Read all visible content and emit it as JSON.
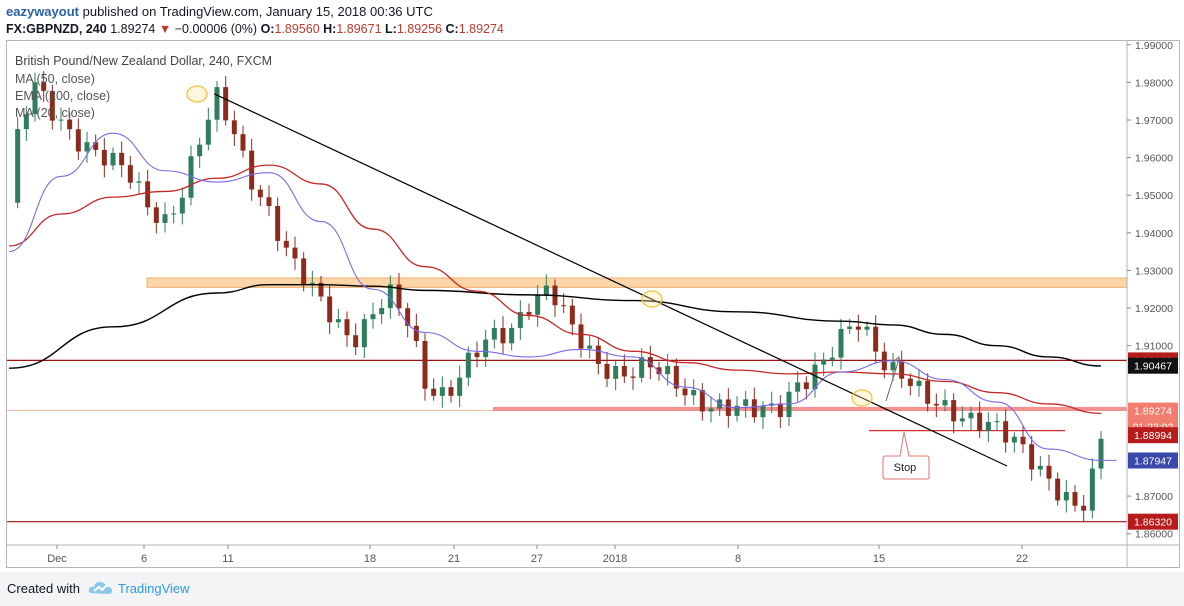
{
  "header": {
    "author": "eazywayout",
    "published_text": "published on TradingView.com, January 15, 2018 00:36 UTC",
    "symbol_line": "FX:GBPNZD, 240",
    "last_price": "1.89274",
    "change": "−0.00006 (0%)",
    "o_label": "O:",
    "o_value": "1.89560",
    "h_label": "H:",
    "h_value": "1.89671",
    "l_label": "L:",
    "l_value": "1.89256",
    "c_label": "C:",
    "c_value": "1.89274"
  },
  "legend": {
    "instrument": "British Pound/New Zealand Dollar, 240, FXCM",
    "ma50": "MA (50, close)",
    "ema200": "EMA (200, close)",
    "ma20": "MA (20, close)"
  },
  "annotations": {
    "stop_label": "Stop"
  },
  "footer": {
    "created_with": "Created with",
    "brand": "TradingView"
  },
  "colors": {
    "bull_candle": "#2e7d5b",
    "bear_candle": "#8b2b1e",
    "ema200": "#000000",
    "ma50": "#c62828",
    "ma20": "#7b68ee",
    "zone_fill": "#fcd5a8",
    "level_line": "#a01010",
    "pink_level": "#f08080",
    "highlight_circle": "#f5c242"
  },
  "chart_data": {
    "type": "candlestick",
    "symbol": "FX:GBPNZD",
    "timeframe": "240",
    "y_axis_ticks": [
      "1.99000",
      "1.98000",
      "1.97000",
      "1.96000",
      "1.95000",
      "1.94000",
      "1.93000",
      "1.92000",
      "1.91000",
      "1.87000",
      "1.86000"
    ],
    "ylim": [
      1.857,
      1.991
    ],
    "x_axis_ticks": [
      "Dec",
      "6",
      "11",
      "18",
      "21",
      "27",
      "2018",
      "8",
      "15",
      "22"
    ],
    "close_path": [
      {
        "x": 0.0,
        "y": 1.948
      },
      {
        "x": 0.2,
        "y": 1.968
      },
      {
        "x": 0.5,
        "y": 1.978
      },
      {
        "x": 0.9,
        "y": 1.971
      },
      {
        "x": 1.3,
        "y": 1.966
      },
      {
        "x": 1.8,
        "y": 1.96
      },
      {
        "x": 2.3,
        "y": 1.955
      },
      {
        "x": 2.7,
        "y": 1.947
      },
      {
        "x": 3.0,
        "y": 1.944
      },
      {
        "x": 3.3,
        "y": 1.95
      },
      {
        "x": 3.7,
        "y": 1.965
      },
      {
        "x": 4.0,
        "y": 1.975
      },
      {
        "x": 4.3,
        "y": 1.968
      },
      {
        "x": 4.6,
        "y": 1.957
      },
      {
        "x": 5.0,
        "y": 1.946
      },
      {
        "x": 5.4,
        "y": 1.932
      },
      {
        "x": 5.8,
        "y": 1.925
      },
      {
        "x": 6.2,
        "y": 1.919
      },
      {
        "x": 6.6,
        "y": 1.912
      },
      {
        "x": 6.9,
        "y": 1.916
      },
      {
        "x": 7.3,
        "y": 1.923
      },
      {
        "x": 7.7,
        "y": 1.916
      },
      {
        "x": 8.0,
        "y": 1.901
      },
      {
        "x": 8.4,
        "y": 1.897
      },
      {
        "x": 8.8,
        "y": 1.904
      },
      {
        "x": 9.2,
        "y": 1.911
      },
      {
        "x": 9.6,
        "y": 1.914
      },
      {
        "x": 10.0,
        "y": 1.922
      },
      {
        "x": 10.4,
        "y": 1.925
      },
      {
        "x": 10.8,
        "y": 1.914
      },
      {
        "x": 11.3,
        "y": 1.906
      },
      {
        "x": 11.8,
        "y": 1.903
      },
      {
        "x": 12.3,
        "y": 1.904
      },
      {
        "x": 12.8,
        "y": 1.9
      },
      {
        "x": 13.3,
        "y": 1.896
      },
      {
        "x": 13.8,
        "y": 1.893
      },
      {
        "x": 14.3,
        "y": 1.892
      },
      {
        "x": 14.8,
        "y": 1.894
      },
      {
        "x": 15.1,
        "y": 1.9
      },
      {
        "x": 15.4,
        "y": 1.902
      },
      {
        "x": 15.7,
        "y": 1.905
      },
      {
        "x": 16.0,
        "y": 1.911
      },
      {
        "x": 16.3,
        "y": 1.917
      },
      {
        "x": 16.6,
        "y": 1.912
      },
      {
        "x": 16.9,
        "y": 1.905
      },
      {
        "x": 17.2,
        "y": 1.902
      },
      {
        "x": 17.6,
        "y": 1.895
      },
      {
        "x": 18.0,
        "y": 1.893
      },
      {
        "x": 18.4,
        "y": 1.892
      },
      {
        "x": 18.8,
        "y": 1.89
      },
      {
        "x": 19.2,
        "y": 1.885
      },
      {
        "x": 19.6,
        "y": 1.88
      },
      {
        "x": 20.0,
        "y": 1.875
      },
      {
        "x": 20.3,
        "y": 1.871
      },
      {
        "x": 20.6,
        "y": 1.866
      },
      {
        "x": 20.8,
        "y": 1.872
      },
      {
        "x": 21.0,
        "y": 1.884
      },
      {
        "x": 21.15,
        "y": 1.893
      }
    ],
    "series": [
      {
        "name": "EMA (200, close)",
        "points": [
          {
            "x": 0.0,
            "y": 1.904
          },
          {
            "x": 2.0,
            "y": 1.915
          },
          {
            "x": 4.0,
            "y": 1.924
          },
          {
            "x": 5.0,
            "y": 1.9262
          },
          {
            "x": 6.0,
            "y": 1.9262
          },
          {
            "x": 7.0,
            "y": 1.9258
          },
          {
            "x": 8.0,
            "y": 1.9247
          },
          {
            "x": 10.0,
            "y": 1.9235
          },
          {
            "x": 12.0,
            "y": 1.922
          },
          {
            "x": 14.0,
            "y": 1.919
          },
          {
            "x": 16.0,
            "y": 1.9165
          },
          {
            "x": 17.0,
            "y": 1.9155
          },
          {
            "x": 18.0,
            "y": 1.913
          },
          {
            "x": 19.0,
            "y": 1.91
          },
          {
            "x": 20.0,
            "y": 1.907
          },
          {
            "x": 21.0,
            "y": 1.9046
          }
        ]
      },
      {
        "name": "MA (50, close)",
        "points": [
          {
            "x": 0.0,
            "y": 1.9365
          },
          {
            "x": 1.0,
            "y": 1.945
          },
          {
            "x": 2.0,
            "y": 1.9495
          },
          {
            "x": 3.0,
            "y": 1.951
          },
          {
            "x": 4.0,
            "y": 1.9545
          },
          {
            "x": 5.0,
            "y": 1.958
          },
          {
            "x": 6.0,
            "y": 1.953
          },
          {
            "x": 7.0,
            "y": 1.941
          },
          {
            "x": 8.0,
            "y": 1.931
          },
          {
            "x": 9.0,
            "y": 1.9245
          },
          {
            "x": 10.0,
            "y": 1.918
          },
          {
            "x": 11.0,
            "y": 1.913
          },
          {
            "x": 12.0,
            "y": 1.9085
          },
          {
            "x": 13.0,
            "y": 1.9055
          },
          {
            "x": 14.0,
            "y": 1.9035
          },
          {
            "x": 15.0,
            "y": 1.9025
          },
          {
            "x": 16.0,
            "y": 1.903
          },
          {
            "x": 17.0,
            "y": 1.9025
          },
          {
            "x": 18.0,
            "y": 1.9005
          },
          {
            "x": 19.0,
            "y": 1.8975
          },
          {
            "x": 20.0,
            "y": 1.8945
          },
          {
            "x": 21.0,
            "y": 1.892
          }
        ]
      },
      {
        "name": "MA (20, close)",
        "points": [
          {
            "x": 0.0,
            "y": 1.935
          },
          {
            "x": 1.0,
            "y": 1.955
          },
          {
            "x": 2.0,
            "y": 1.9665
          },
          {
            "x": 3.0,
            "y": 1.9565
          },
          {
            "x": 4.0,
            "y": 1.9535
          },
          {
            "x": 5.0,
            "y": 1.956
          },
          {
            "x": 6.0,
            "y": 1.943
          },
          {
            "x": 7.0,
            "y": 1.925
          },
          {
            "x": 8.0,
            "y": 1.9135
          },
          {
            "x": 9.0,
            "y": 1.9085
          },
          {
            "x": 10.0,
            "y": 1.907
          },
          {
            "x": 11.0,
            "y": 1.909
          },
          {
            "x": 12.0,
            "y": 1.907
          },
          {
            "x": 13.0,
            "y": 1.899
          },
          {
            "x": 14.0,
            "y": 1.8935
          },
          {
            "x": 15.0,
            "y": 1.8945
          },
          {
            "x": 16.0,
            "y": 1.903
          },
          {
            "x": 17.0,
            "y": 1.906
          },
          {
            "x": 18.0,
            "y": 1.901
          },
          {
            "x": 19.0,
            "y": 1.895
          },
          {
            "x": 20.0,
            "y": 1.8825
          },
          {
            "x": 21.0,
            "y": 1.8795
          },
          {
            "x": 21.3,
            "y": 1.8795
          }
        ]
      }
    ],
    "price_labels": [
      {
        "value": "1.90608",
        "y": 1.90608,
        "style": "red"
      },
      {
        "value": "1.90467",
        "y": 1.90467,
        "style": "black"
      },
      {
        "value": "1.89274",
        "y": 1.89274,
        "style": "salmon"
      },
      {
        "value": "01:23:02",
        "y": 1.8885,
        "style": "salmon"
      },
      {
        "value": "1.88994",
        "y": 1.8862,
        "style": "red"
      },
      {
        "value": "1.87947",
        "y": 1.87947,
        "style": "blue"
      },
      {
        "value": "1.86320",
        "y": 1.8632,
        "style": "red"
      }
    ],
    "horizontal_levels": [
      1.90608,
      1.8632
    ],
    "resistance_zone": [
      1.9255,
      1.928
    ],
    "drawn_level": 1.8932,
    "stop_level": 1.8874,
    "trendline": [
      {
        "x": 4.1,
        "y": 1.9775
      },
      {
        "x": 22.6,
        "y": 1.8775
      }
    ],
    "highlight_points": [
      {
        "x": 4.1,
        "y": 1.9775
      },
      {
        "x": 16.3,
        "y": 1.919
      },
      {
        "x": 21.0,
        "y": 1.8955
      }
    ]
  }
}
